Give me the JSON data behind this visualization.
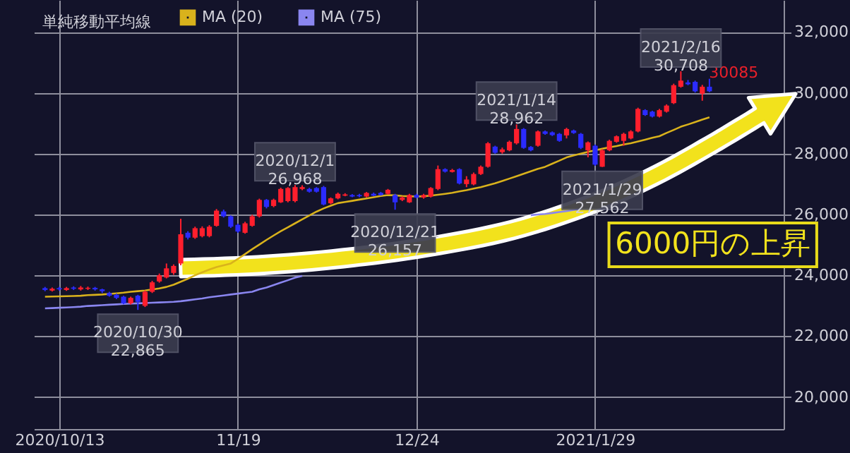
{
  "chart_data": {
    "type": "candlestick",
    "categories": [
      null,
      null,
      "2020/10/13",
      null,
      null,
      null,
      null,
      null,
      null,
      null,
      null,
      null,
      null,
      null,
      null,
      null,
      null,
      null,
      null,
      null,
      null,
      null,
      null,
      null,
      null,
      null,
      null,
      "11/19",
      null,
      null,
      null,
      null,
      null,
      null,
      null,
      null,
      null,
      null,
      null,
      null,
      null,
      null,
      null,
      null,
      null,
      null,
      null,
      null,
      null,
      null,
      null,
      null,
      "12/24",
      null,
      null,
      null,
      null,
      null,
      null,
      null,
      null,
      null,
      null,
      null,
      null,
      null,
      null,
      null,
      null,
      null,
      null,
      null,
      null,
      null,
      null,
      null,
      null,
      "2021/1/29",
      null,
      null,
      null,
      null,
      null,
      null,
      null,
      null,
      null,
      null,
      null,
      null,
      null,
      null,
      null,
      null
    ],
    "ohlc": [
      [
        23580,
        23620,
        23480,
        23520
      ],
      [
        23500,
        23600,
        23470,
        23560
      ],
      [
        23580,
        23620,
        23500,
        23540
      ],
      [
        23520,
        23620,
        23490,
        23580
      ],
      [
        23600,
        23640,
        23520,
        23560
      ],
      [
        23540,
        23650,
        23500,
        23600
      ],
      [
        23560,
        23630,
        23520,
        23590
      ],
      [
        23590,
        23620,
        23500,
        23540
      ],
      [
        23540,
        23560,
        23420,
        23480
      ],
      [
        23420,
        23460,
        23300,
        23330
      ],
      [
        23360,
        23400,
        23220,
        23260
      ],
      [
        23300,
        23330,
        23050,
        23080
      ],
      [
        23080,
        23300,
        23040,
        23260
      ],
      [
        23330,
        23360,
        22865,
        23130
      ],
      [
        23000,
        23500,
        22960,
        23460
      ],
      [
        23460,
        23820,
        23420,
        23770
      ],
      [
        23800,
        24060,
        23760,
        24000
      ],
      [
        23930,
        24390,
        23900,
        24230
      ],
      [
        24080,
        24360,
        24020,
        24310
      ],
      [
        24390,
        25860,
        24330,
        25350
      ],
      [
        25400,
        25450,
        25180,
        25240
      ],
      [
        25240,
        25600,
        25200,
        25550
      ],
      [
        25290,
        25610,
        25250,
        25550
      ],
      [
        25290,
        25650,
        25250,
        25600
      ],
      [
        25630,
        26180,
        25600,
        26130
      ],
      [
        26100,
        26160,
        25900,
        25940
      ],
      [
        25940,
        25970,
        25560,
        25600
      ],
      [
        25660,
        25700,
        25400,
        25440
      ],
      [
        25400,
        25760,
        25370,
        25710
      ],
      [
        25630,
        25990,
        25600,
        25940
      ],
      [
        25940,
        26520,
        25900,
        26480
      ],
      [
        26480,
        26510,
        26200,
        26250
      ],
      [
        26280,
        26520,
        26240,
        26480
      ],
      [
        26400,
        26880,
        26380,
        26840
      ],
      [
        26440,
        26900,
        26400,
        26870
      ],
      [
        26440,
        26968,
        26400,
        26900
      ],
      [
        26840,
        26960,
        26800,
        26900
      ],
      [
        26840,
        26880,
        26720,
        26750
      ],
      [
        26870,
        26900,
        26720,
        26750
      ],
      [
        26900,
        26940,
        26300,
        26330
      ],
      [
        26370,
        26560,
        26340,
        26530
      ],
      [
        26530,
        26720,
        26500,
        26680
      ],
      [
        26620,
        26700,
        26600,
        26660
      ],
      [
        26640,
        26670,
        26570,
        26590
      ],
      [
        26640,
        26680,
        26570,
        26600
      ],
      [
        26590,
        26740,
        26560,
        26710
      ],
      [
        26680,
        26720,
        26600,
        26620
      ],
      [
        26710,
        26740,
        26620,
        26640
      ],
      [
        26680,
        26840,
        26650,
        26810
      ],
      [
        26640,
        26680,
        26157,
        26400
      ],
      [
        26480,
        26600,
        26440,
        26560
      ],
      [
        26400,
        26680,
        26380,
        26640
      ],
      [
        26640,
        26680,
        26530,
        26560
      ],
      [
        26560,
        26680,
        26520,
        26640
      ],
      [
        26590,
        26900,
        26560,
        26870
      ],
      [
        26840,
        27610,
        26800,
        27490
      ],
      [
        27490,
        27520,
        27380,
        27410
      ],
      [
        27400,
        27500,
        27380,
        27460
      ],
      [
        27490,
        27520,
        26990,
        27020
      ],
      [
        27000,
        27260,
        26900,
        27150
      ],
      [
        26990,
        27380,
        26960,
        27330
      ],
      [
        27330,
        27610,
        27300,
        27570
      ],
      [
        27570,
        28380,
        27540,
        28340
      ],
      [
        28230,
        28260,
        28000,
        28030
      ],
      [
        28050,
        28200,
        28000,
        28140
      ],
      [
        28110,
        28430,
        28080,
        28390
      ],
      [
        28340,
        28962,
        28300,
        28810
      ],
      [
        28810,
        28840,
        28160,
        28190
      ],
      [
        28220,
        28250,
        28080,
        28110
      ],
      [
        28260,
        28760,
        28230,
        28730
      ],
      [
        28730,
        28760,
        28620,
        28650
      ],
      [
        28700,
        28730,
        28580,
        28610
      ],
      [
        28650,
        28680,
        28390,
        28420
      ],
      [
        28600,
        28850,
        28500,
        28810
      ],
      [
        28760,
        28790,
        28650,
        28680
      ],
      [
        28650,
        28680,
        28150,
        28190
      ],
      [
        28110,
        28400,
        27880,
        28370
      ],
      [
        28260,
        28300,
        27600,
        27640
      ],
      [
        27570,
        28150,
        27562,
        28110
      ],
      [
        28110,
        28460,
        28080,
        28420
      ],
      [
        28390,
        28600,
        28360,
        28570
      ],
      [
        28420,
        28690,
        28260,
        28650
      ],
      [
        28500,
        28770,
        28470,
        28730
      ],
      [
        28730,
        29510,
        28700,
        29470
      ],
      [
        29430,
        29460,
        29240,
        29270
      ],
      [
        29380,
        29410,
        29190,
        29220
      ],
      [
        29220,
        29470,
        29190,
        29430
      ],
      [
        29380,
        29620,
        29350,
        29580
      ],
      [
        29660,
        30300,
        29630,
        30250
      ],
      [
        30200,
        30708,
        30170,
        30400
      ],
      [
        30340,
        30420,
        30250,
        30280
      ],
      [
        30360,
        30400,
        30010,
        30050
      ],
      [
        29970,
        30260,
        29740,
        30200
      ],
      [
        30200,
        30460,
        30020,
        30050
      ]
    ],
    "colors": [
      "#2b2bff",
      "#ff1f2d",
      "#2b2bff",
      "#ff1f2d",
      "#2b2bff",
      "#ff1f2d",
      "#ff1f2d",
      "#2b2bff",
      "#2b2bff",
      "#2b2bff",
      "#2b2bff",
      "#2b2bff",
      "#ff1f2d",
      "#2b2bff",
      "#ff1f2d",
      "#ff1f2d",
      "#ff1f2d",
      "#ff1f2d",
      "#ff1f2d",
      "#ff1f2d",
      "#2b2bff",
      "#ff1f2d",
      "#ff1f2d",
      "#ff1f2d",
      "#ff1f2d",
      "#2b2bff",
      "#2b2bff",
      "#2b2bff",
      "#ff1f2d",
      "#ff1f2d",
      "#ff1f2d",
      "#2b2bff",
      "#ff1f2d",
      "#ff1f2d",
      "#ff1f2d",
      "#ff1f2d",
      "#ff1f2d",
      "#2b2bff",
      "#2b2bff",
      "#2b2bff",
      "#ff1f2d",
      "#ff1f2d",
      "#ff1f2d",
      "#2b2bff",
      "#2b2bff",
      "#ff1f2d",
      "#2b2bff",
      "#2b2bff",
      "#ff1f2d",
      "#2b2bff",
      "#ff1f2d",
      "#ff1f2d",
      "#2b2bff",
      "#ff1f2d",
      "#ff1f2d",
      "#ff1f2d",
      "#2b2bff",
      "#ff1f2d",
      "#2b2bff",
      "#ff1f2d",
      "#ff1f2d",
      "#ff1f2d",
      "#ff1f2d",
      "#2b2bff",
      "#ff1f2d",
      "#ff1f2d",
      "#ff1f2d",
      "#2b2bff",
      "#2b2bff",
      "#ff1f2d",
      "#2b2bff",
      "#2b2bff",
      "#2b2bff",
      "#ff1f2d",
      "#2b2bff",
      "#2b2bff",
      "#ff1f2d",
      "#2b2bff",
      "#ff1f2d",
      "#ff1f2d",
      "#ff1f2d",
      "#ff1f2d",
      "#ff1f2d",
      "#ff1f2d",
      "#2b2bff",
      "#2b2bff",
      "#ff1f2d",
      "#ff1f2d",
      "#ff1f2d",
      "#ff1f2d",
      "#2b2bff",
      "#2b2bff",
      "#ff1f2d",
      "#2b2bff"
    ],
    "series": [
      {
        "type": "line",
        "name": "MA (20)",
        "color": "#d9b21c",
        "values": [
          23300,
          23305,
          23310,
          23315,
          23320,
          23330,
          23350,
          23360,
          23370,
          23390,
          23410,
          23430,
          23460,
          23480,
          23500,
          23537,
          23570,
          23620,
          23692,
          23790,
          23890,
          24002,
          24100,
          24190,
          24270,
          24330,
          24390,
          24540,
          24700,
          24860,
          25010,
          25165,
          25310,
          25450,
          25580,
          25710,
          25840,
          25970,
          26094,
          26200,
          26290,
          26374,
          26410,
          26450,
          26490,
          26528,
          26570,
          26610,
          26637,
          26630,
          26610,
          26600,
          26590,
          26600,
          26620,
          26650,
          26680,
          26715,
          26760,
          26800,
          26850,
          26900,
          26960,
          27025,
          27100,
          27180,
          27260,
          27340,
          27420,
          27500,
          27567,
          27670,
          27770,
          27877,
          27940,
          28000,
          28060,
          28110,
          28160,
          28210,
          28250,
          28300,
          28342,
          28400,
          28460,
          28520,
          28575,
          28680,
          28780,
          28885,
          28960,
          29040,
          29120,
          29194
        ]
      },
      {
        "type": "line",
        "name": "MA (75)",
        "color": "#8a86f0",
        "values": [
          22917,
          22925,
          22935,
          22945,
          22955,
          22970,
          22995,
          23005,
          23020,
          23035,
          23045,
          23060,
          23072,
          23080,
          23090,
          23100,
          23110,
          23120,
          23130,
          23150,
          23180,
          23210,
          23240,
          23280,
          23310,
          23340,
          23370,
          23400,
          23430,
          23460,
          23540,
          23600,
          23680,
          23760,
          23840,
          23925,
          23980,
          null,
          null,
          null,
          null,
          null,
          null,
          null,
          null,
          null,
          null,
          null,
          null,
          null,
          null,
          null,
          null,
          null,
          null,
          null,
          null,
          null,
          null,
          null,
          null,
          null,
          null,
          null,
          null,
          null,
          null,
          null,
          25980,
          26000,
          26017,
          26050,
          26080,
          26110,
          26150,
          26180,
          null,
          null,
          null,
          null,
          null,
          null,
          null,
          null,
          null,
          null,
          null,
          null,
          null,
          null,
          null,
          null,
          null,
          null
        ]
      }
    ],
    "legend_title": "単純移動平均線",
    "legend": "top left",
    "ylim": [
      18950,
      33050
    ],
    "yticks": [
      {
        "value": 20000,
        "label": "20,000"
      },
      {
        "value": 22000,
        "label": "22,000"
      },
      {
        "value": 24000,
        "label": "24,000"
      },
      {
        "value": 26000,
        "label": "26,000"
      },
      {
        "value": 28000,
        "label": "28,000"
      },
      {
        "value": 30000,
        "label": "30,000"
      },
      {
        "value": 32000,
        "label": "32,000"
      }
    ],
    "grid": true,
    "annotations": [
      {
        "text": "2020/10/30 22,865",
        "y": 22865
      },
      {
        "text": "2020/12/1 26,968",
        "y": 26968
      },
      {
        "text": "2020/12/21 26,157",
        "y": 26157
      },
      {
        "text": "2021/1/14 28,962",
        "y": 28962
      },
      {
        "text": "2021/1/29 27,562",
        "y": 27562
      },
      {
        "text": "2021/2/16 30,708",
        "y": 30708
      },
      "30085",
      "6000円の上昇"
    ]
  }
}
